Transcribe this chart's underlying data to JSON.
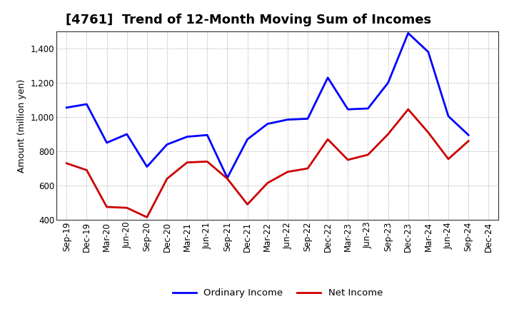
{
  "title": "[4761]  Trend of 12-Month Moving Sum of Incomes",
  "ylabel": "Amount (million yen)",
  "x_labels": [
    "Sep-19",
    "Dec-19",
    "Mar-20",
    "Jun-20",
    "Sep-20",
    "Dec-20",
    "Mar-21",
    "Jun-21",
    "Sep-21",
    "Dec-21",
    "Mar-22",
    "Jun-22",
    "Sep-22",
    "Dec-22",
    "Mar-23",
    "Jun-23",
    "Sep-23",
    "Dec-23",
    "Mar-24",
    "Jun-24",
    "Sep-24",
    "Dec-24"
  ],
  "ordinary_income": [
    1055,
    1075,
    850,
    900,
    710,
    840,
    885,
    895,
    645,
    870,
    960,
    985,
    990,
    1230,
    1045,
    1050,
    1200,
    1490,
    1380,
    1005,
    895,
    null
  ],
  "net_income": [
    730,
    690,
    475,
    470,
    415,
    640,
    735,
    740,
    640,
    490,
    615,
    680,
    700,
    870,
    750,
    780,
    900,
    1045,
    910,
    755,
    860,
    null
  ],
  "ordinary_color": "#0000ff",
  "net_color": "#cc0000",
  "ylim": [
    400,
    1500
  ],
  "yticks": [
    400,
    600,
    800,
    1000,
    1200,
    1400
  ],
  "background_color": "#ffffff",
  "plot_bg_color": "#ffffff",
  "grid_color": "#999999",
  "title_fontsize": 13,
  "label_fontsize": 9,
  "tick_fontsize": 8.5,
  "legend_fontsize": 9.5,
  "linewidth": 2.0
}
